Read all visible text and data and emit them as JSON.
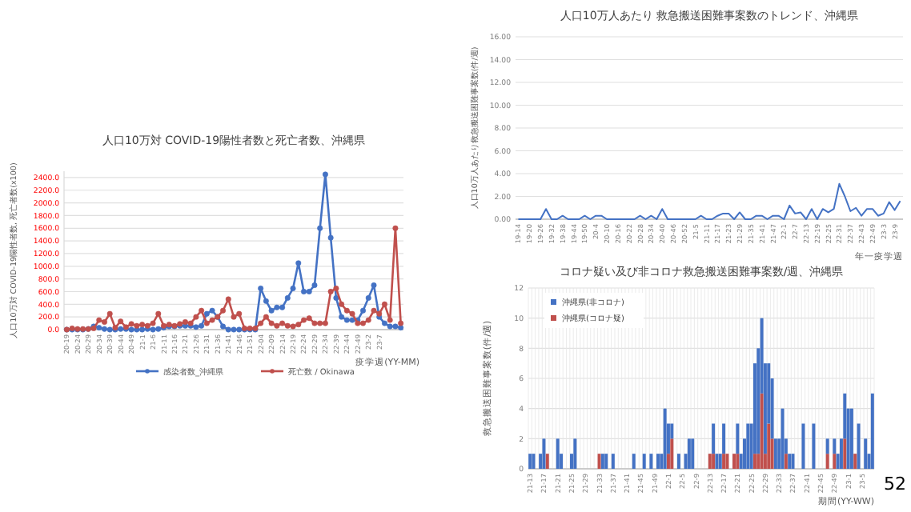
{
  "chart_data": [
    {
      "type": "line",
      "title": "人口10万対 COVID-19陽性者数と死亡者数、沖縄県",
      "xlabel": "疫学週(YY-MM)",
      "ylabel": "人口10万対 COVID-19陽性者数, 死亡者数(x100)",
      "legend": "bottom",
      "marker": "circle",
      "grid": "y",
      "ylim": [
        0,
        2500
      ],
      "yticks": [
        {
          "value": 0,
          "label": "0.0"
        },
        {
          "value": 200,
          "label": "200.0"
        },
        {
          "value": 400,
          "label": "400.0"
        },
        {
          "value": 600,
          "label": "600.0"
        },
        {
          "value": 800,
          "label": "800.0"
        },
        {
          "value": 1000,
          "label": "1000.0"
        },
        {
          "value": 1200,
          "label": "1200.0"
        },
        {
          "value": 1400,
          "label": "1400.0"
        },
        {
          "value": 1600,
          "label": "1600.0"
        },
        {
          "value": 1800,
          "label": "1800.0"
        },
        {
          "value": 2000,
          "label": "2000.0"
        },
        {
          "value": 2200,
          "label": "2200.0"
        },
        {
          "value": 2400,
          "label": "2400.0"
        }
      ],
      "categories": [
        "20-19",
        null,
        "20-24",
        null,
        "20-29",
        null,
        "20-34",
        null,
        "20-39",
        null,
        "20-44",
        null,
        "20-49",
        null,
        "21-1",
        null,
        "21-6",
        null,
        "21-11",
        null,
        "21-16",
        null,
        "21-21",
        null,
        "21-26",
        null,
        "21-31",
        null,
        "21-36",
        null,
        "21-41",
        null,
        "21-46",
        null,
        "21-51",
        null,
        "22-04",
        null,
        "22-09",
        null,
        "22-14",
        null,
        "22-19",
        null,
        "22-24",
        null,
        "22-29",
        null,
        "22-34",
        null,
        "22-39",
        null,
        "22-44",
        null,
        "22-49",
        null,
        "23-2",
        null,
        "23-7",
        null,
        null,
        null,
        null
      ],
      "series": [
        {
          "name": "感染者数_沖縄県",
          "color": "#4472c4",
          "values": [
            0,
            0,
            0,
            0,
            10,
            50,
            30,
            10,
            0,
            0,
            10,
            10,
            0,
            0,
            0,
            10,
            0,
            10,
            30,
            50,
            50,
            60,
            60,
            60,
            40,
            60,
            250,
            300,
            200,
            50,
            0,
            0,
            0,
            0,
            0,
            0,
            650,
            450,
            300,
            350,
            350,
            500,
            650,
            1050,
            600,
            600,
            700,
            1600,
            2450,
            1450,
            500,
            200,
            150,
            150,
            150,
            300,
            500,
            700,
            200,
            100,
            50,
            50,
            30
          ]
        },
        {
          "name": "死亡数 / Okinawa",
          "color": "#c0504d",
          "values": [
            0,
            20,
            10,
            10,
            10,
            20,
            150,
            120,
            250,
            30,
            130,
            40,
            90,
            60,
            80,
            60,
            100,
            250,
            60,
            80,
            60,
            90,
            120,
            100,
            200,
            300,
            100,
            150,
            200,
            300,
            480,
            200,
            250,
            20,
            20,
            20,
            100,
            200,
            100,
            60,
            100,
            60,
            50,
            80,
            150,
            180,
            100,
            100,
            100,
            600,
            650,
            400,
            300,
            250,
            100,
            100,
            150,
            300,
            250,
            400,
            150,
            1600,
            100
          ]
        }
      ]
    },
    {
      "type": "line",
      "title": "人口10万人あたり 救急搬送困難事案数のトレンド、沖縄県",
      "xlabel": "年一疫学週",
      "ylabel": "人口10万人あたり救急搬送困難事案数(件/週)",
      "grid": "y",
      "ylim": [
        0,
        16
      ],
      "yticks": [
        {
          "value": 0,
          "label": "0.00"
        },
        {
          "value": 2,
          "label": "2.00"
        },
        {
          "value": 4,
          "label": "4.00"
        },
        {
          "value": 6,
          "label": "6.00"
        },
        {
          "value": 8,
          "label": "8.00"
        },
        {
          "value": 10,
          "label": "10.00"
        },
        {
          "value": 12,
          "label": "12.00"
        },
        {
          "value": 14,
          "label": "14.00"
        },
        {
          "value": 16,
          "label": "16.00"
        }
      ],
      "categories": [
        "19-14",
        null,
        "19-20",
        null,
        "19-26",
        null,
        "19-32",
        null,
        "19-38",
        null,
        "19-44",
        null,
        "19-50",
        null,
        "20-4",
        null,
        "20-10",
        null,
        "20-16",
        null,
        "20-22",
        null,
        "20-28",
        null,
        "20-34",
        null,
        "20-40",
        null,
        "20-46",
        null,
        "20-52",
        null,
        "21-5",
        null,
        "21-11",
        null,
        "21-17",
        null,
        "21-23",
        null,
        "21-29",
        null,
        "21-35",
        null,
        "21-41",
        null,
        "21-47",
        null,
        "22-1",
        null,
        "22-7",
        null,
        "22-13",
        null,
        "22-19",
        null,
        "22-25",
        null,
        "22-31",
        null,
        "22-37",
        null,
        "22-43",
        null,
        "22-49",
        null,
        "23-3",
        null,
        "23-9",
        null
      ],
      "series": [
        {
          "color": "#4472c4",
          "values": [
            0,
            0,
            0,
            0,
            0,
            0.9,
            0,
            0,
            0.3,
            0,
            0,
            0,
            0.3,
            0,
            0.3,
            0.3,
            0,
            0,
            0,
            0,
            0,
            0,
            0.3,
            0,
            0.3,
            0,
            0.9,
            0,
            0,
            0,
            0,
            0,
            0,
            0.3,
            0,
            0,
            0.3,
            0.5,
            0.5,
            0,
            0.6,
            0,
            0,
            0.3,
            0.3,
            0,
            0.3,
            0.3,
            0,
            1.2,
            0.5,
            0.6,
            0,
            0.9,
            0,
            0.9,
            0.6,
            0.9,
            3.1,
            2.0,
            0.7,
            1.0,
            0.3,
            0.9,
            0.9,
            0.3,
            0.5,
            1.5,
            0.8,
            1.6
          ]
        }
      ]
    },
    {
      "type": "bar",
      "stacked": true,
      "title": "コロナ疑い及び非コロナ救急搬送困難事案数/週、沖縄県",
      "xlabel": "期間(YY-WW)",
      "ylabel": "救急搬送困難事案数(件/週)",
      "legend": "top left",
      "grid": true,
      "ylim": [
        0,
        12
      ],
      "yticks": [
        0,
        2,
        4,
        6,
        8,
        10,
        12
      ],
      "annotations": [
        "52"
      ],
      "categories": [
        "21-13",
        null,
        null,
        null,
        "21-17",
        null,
        null,
        null,
        "21-21",
        null,
        null,
        null,
        "21-25",
        null,
        null,
        null,
        "21-29",
        null,
        null,
        null,
        "21-33",
        null,
        null,
        null,
        "21-37",
        null,
        null,
        null,
        "21-41",
        null,
        null,
        null,
        "21-45",
        null,
        null,
        null,
        "21-49",
        null,
        null,
        null,
        "22-1",
        null,
        null,
        null,
        "22-5",
        null,
        null,
        null,
        "22-9",
        null,
        null,
        null,
        "22-13",
        null,
        null,
        null,
        "22-17",
        null,
        null,
        null,
        "22-21",
        null,
        null,
        null,
        "22-25",
        null,
        null,
        null,
        "22-29",
        null,
        null,
        null,
        "22-33",
        null,
        null,
        null,
        "22-37",
        null,
        null,
        null,
        "22-41",
        null,
        null,
        null,
        "22-45",
        null,
        null,
        null,
        "22-49",
        null,
        null,
        null,
        "23-1",
        null,
        null,
        null,
        "23-5",
        null,
        null,
        null
      ],
      "series": [
        {
          "name": "沖縄県(コロナ疑)",
          "color": "#c0504d",
          "values": [
            0,
            0,
            0,
            0,
            0,
            1,
            0,
            0,
            0,
            0,
            0,
            0,
            0,
            0,
            0,
            0,
            0,
            0,
            0,
            0,
            1,
            0,
            0,
            0,
            0,
            0,
            0,
            0,
            0,
            0,
            0,
            0,
            0,
            0,
            0,
            0,
            0,
            0,
            0,
            0,
            1,
            2,
            0,
            0,
            0,
            0,
            0,
            0,
            0,
            0,
            0,
            0,
            1,
            1,
            0,
            0,
            1,
            1,
            0,
            1,
            1,
            0,
            0,
            0,
            0,
            1,
            1,
            5,
            1,
            3,
            2,
            0,
            0,
            0,
            1,
            0,
            0,
            0,
            0,
            0,
            0,
            0,
            0,
            0,
            0,
            0,
            1,
            0,
            1,
            0,
            0,
            2,
            0,
            0,
            1,
            0,
            0,
            0,
            0,
            0
          ]
        },
        {
          "name": "沖縄県(非コロナ)",
          "color": "#4472c4",
          "values": [
            1,
            1,
            0,
            1,
            2,
            0,
            0,
            0,
            2,
            1,
            0,
            0,
            1,
            2,
            0,
            0,
            0,
            0,
            0,
            0,
            0,
            1,
            1,
            0,
            1,
            0,
            0,
            0,
            0,
            0,
            1,
            0,
            0,
            1,
            0,
            1,
            0,
            1,
            1,
            4,
            2,
            1,
            0,
            1,
            0,
            1,
            2,
            2,
            0,
            0,
            0,
            0,
            0,
            2,
            1,
            1,
            2,
            0,
            0,
            0,
            2,
            1,
            2,
            3,
            3,
            6,
            7,
            5,
            6,
            4,
            4,
            2,
            2,
            4,
            1,
            1,
            1,
            0,
            0,
            3,
            0,
            0,
            3,
            0,
            0,
            0,
            1,
            0,
            1,
            1,
            2,
            3,
            4,
            4,
            0,
            3,
            0,
            2,
            1,
            5
          ]
        }
      ]
    }
  ]
}
